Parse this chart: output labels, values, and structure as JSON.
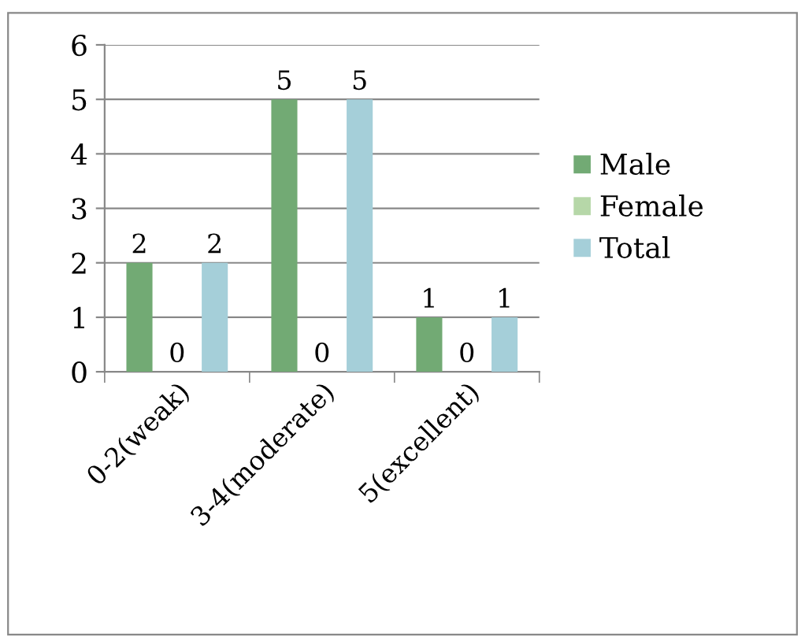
{
  "chart_data": {
    "type": "bar",
    "categories": [
      "0-2(weak)",
      "3-4(moderate)",
      "5(excellent)"
    ],
    "series": [
      {
        "name": "Male",
        "color": "#72aa74",
        "values": [
          2,
          5,
          1
        ]
      },
      {
        "name": "Female",
        "color": "#b6d7a8",
        "values": [
          0,
          0,
          0
        ]
      },
      {
        "name": "Total",
        "color": "#a5cfd9",
        "values": [
          2,
          5,
          1
        ]
      }
    ],
    "ylim": [
      0,
      6
    ],
    "yticks": [
      0,
      1,
      2,
      3,
      4,
      5,
      6
    ],
    "grid": "y",
    "legend": "right",
    "data_labels": true
  }
}
